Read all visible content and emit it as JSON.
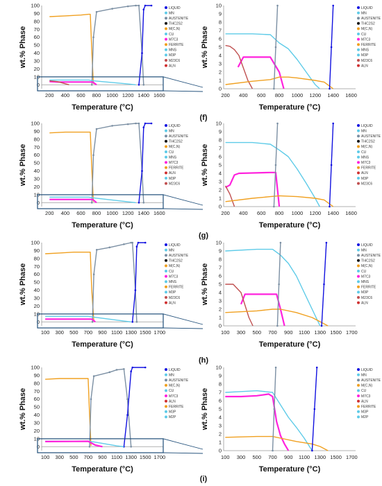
{
  "colors": {
    "LIQUID": "#1010e0",
    "MN": "#5ecbe8",
    "AUSTENITE": "#7b8fa3",
    "TI4C2S2": "#111111",
    "M(C,N)": "#f0a020",
    "CU": "#5ecbe8",
    "M7C3": "#ff22dd",
    "FERRITE": "#f0a020",
    "MNS": "#5ecbe8",
    "M3P": "#5ecbe8",
    "M23C6": "#c05050",
    "ALN": "#d03030",
    "M2P": "#5ecbe8"
  },
  "chart_data": [
    {
      "panel": "(f)",
      "side": "left",
      "type": "line",
      "xlabel": "Temperature (°C)",
      "ylabel": "wt.% Phase",
      "xlim": [
        100,
        1650
      ],
      "ylim": [
        -5,
        100
      ],
      "xticks": [
        200,
        400,
        600,
        800,
        1000,
        1200,
        1400,
        1600
      ],
      "yticks": [
        0,
        10,
        20,
        30,
        40,
        50,
        60,
        70,
        80,
        90,
        100
      ],
      "legend": [
        "LIQUID",
        "MN",
        "AUSTENITE",
        "TI4C2S2",
        "M(C,N)",
        "CU",
        "M7C3",
        "FERRITE",
        "MNS",
        "M3P",
        "M23C6",
        "ALN"
      ],
      "series": [
        {
          "name": "FERRITE",
          "x": [
            200,
            400,
            600,
            700,
            720,
            740,
            760
          ],
          "y": [
            86,
            87,
            88,
            89,
            89,
            40,
            1
          ]
        },
        {
          "name": "AUSTENITE",
          "x": [
            740,
            760,
            800,
            1000,
            1200,
            1300,
            1340,
            1380,
            1400
          ],
          "y": [
            0,
            60,
            92,
            96,
            99,
            100,
            100,
            40,
            0
          ]
        },
        {
          "name": "LIQUID",
          "x": [
            1340,
            1380,
            1400,
            1420,
            1500
          ],
          "y": [
            0,
            40,
            95,
            100,
            100
          ]
        },
        {
          "name": "MN",
          "x": [
            200,
            700,
            760,
            1200,
            1300
          ],
          "y": [
            6,
            6,
            5,
            1,
            0
          ]
        },
        {
          "name": "M7C3",
          "x": [
            200,
            300,
            750,
            800
          ],
          "y": [
            4,
            3.5,
            3.5,
            0
          ]
        },
        {
          "name": "M23C6",
          "x": [
            200,
            300,
            450
          ],
          "y": [
            5,
            4,
            0
          ]
        }
      ]
    },
    {
      "panel": "(f)",
      "side": "right",
      "type": "line",
      "xlabel": "Temperature (°C)",
      "ylabel": "wt.% Phase",
      "xlim": [
        180,
        1650
      ],
      "ylim": [
        0,
        10
      ],
      "xticks": [
        200,
        400,
        600,
        800,
        1000,
        1200,
        1400,
        1600
      ],
      "yticks": [
        0,
        1,
        2,
        3,
        4,
        5,
        6,
        7,
        8,
        9,
        10
      ],
      "legend": [
        "LIQUID",
        "MN",
        "AUSTENITE",
        "TI4C2S2",
        "M(C,N)",
        "CU",
        "M7C3",
        "FERRITE",
        "MNS",
        "M3P",
        "M23C6",
        "ALN"
      ],
      "series": [
        {
          "name": "MN",
          "x": [
            200,
            500,
            700,
            800,
            900,
            1000,
            1100,
            1200,
            1250
          ],
          "y": [
            6.6,
            6.6,
            6.5,
            5.5,
            4.8,
            3.5,
            2,
            0.5,
            0
          ]
        },
        {
          "name": "M7C3",
          "x": [
            340,
            400,
            650,
            700,
            800,
            850
          ],
          "y": [
            2.6,
            3.8,
            3.8,
            3.8,
            2,
            0
          ]
        },
        {
          "name": "M23C6",
          "x": [
            200,
            250,
            300,
            350,
            400,
            450,
            500
          ],
          "y": [
            5.2,
            5.1,
            4.7,
            4,
            2.5,
            1,
            0
          ]
        },
        {
          "name": "FERRITE",
          "x": [
            200,
            500,
            700,
            800,
            900,
            1000,
            1200,
            1300,
            1400
          ],
          "y": [
            0.5,
            0.9,
            1.1,
            1.4,
            1.4,
            1.3,
            1,
            0.8,
            0
          ]
        },
        {
          "name": "LIQUID",
          "x": [
            1360,
            1380,
            1400
          ],
          "y": [
            0,
            5,
            10
          ]
        },
        {
          "name": "AUSTENITE",
          "x": [
            740,
            760,
            780
          ],
          "y": [
            0,
            5,
            10
          ]
        }
      ]
    },
    {
      "panel": "(g)",
      "side": "left",
      "type": "line",
      "xlabel": "Temperature (°C)",
      "ylabel": "wt.% Phase",
      "xlim": [
        100,
        1650
      ],
      "ylim": [
        -5,
        100
      ],
      "xticks": [
        200,
        400,
        600,
        800,
        1000,
        1200,
        1400,
        1600
      ],
      "yticks": [
        0,
        10,
        20,
        30,
        40,
        50,
        60,
        70,
        80,
        90,
        100
      ],
      "legend": [
        "LIQUID",
        "MN",
        "AUSTENITE",
        "TI4C2S2",
        "M(C,N)",
        "CU",
        "MNS",
        "M7C3",
        "FERRITE",
        "ALN",
        "M3P",
        "M23C6"
      ],
      "series": [
        {
          "name": "FERRITE",
          "x": [
            200,
            400,
            600,
            700,
            720,
            740,
            760
          ],
          "y": [
            88,
            89,
            89,
            89,
            89,
            40,
            1
          ]
        },
        {
          "name": "AUSTENITE",
          "x": [
            740,
            760,
            800,
            1000,
            1200,
            1300,
            1340,
            1380,
            1400
          ],
          "y": [
            0,
            60,
            93,
            97,
            99,
            100,
            100,
            40,
            0
          ]
        },
        {
          "name": "LIQUID",
          "x": [
            1340,
            1380,
            1400,
            1420,
            1500
          ],
          "y": [
            0,
            40,
            95,
            100,
            100
          ]
        },
        {
          "name": "MN",
          "x": [
            200,
            700,
            760,
            1200,
            1300
          ],
          "y": [
            7,
            7,
            6,
            1,
            0
          ]
        },
        {
          "name": "M7C3",
          "x": [
            200,
            300,
            750,
            800
          ],
          "y": [
            4,
            4,
            4,
            0
          ]
        }
      ]
    },
    {
      "panel": "(g)",
      "side": "right",
      "type": "line",
      "xlabel": "Temperature (°C)",
      "ylabel": "wt.% Phase",
      "xlim": [
        180,
        1650
      ],
      "ylim": [
        0,
        10
      ],
      "xticks": [
        200,
        400,
        600,
        800,
        1000,
        1200,
        1400,
        1600
      ],
      "yticks": [
        0,
        1,
        2,
        3,
        4,
        5,
        6,
        7,
        8,
        9,
        10
      ],
      "legend": [
        "LIQUID",
        "MN",
        "AUSTENITE",
        "TI4C2S2",
        "M(C,N)",
        "CU",
        "MNS",
        "M7C3",
        "FERRITE",
        "ALN",
        "M3P",
        "M23C6"
      ],
      "series": [
        {
          "name": "MN",
          "x": [
            200,
            500,
            700,
            800,
            900,
            1000,
            1100,
            1200,
            1250
          ],
          "y": [
            7.7,
            7.7,
            7.5,
            6.8,
            6,
            4.5,
            2.8,
            1,
            0
          ]
        },
        {
          "name": "M7C3",
          "x": [
            200,
            250,
            300,
            350,
            700,
            760,
            800
          ],
          "y": [
            2.3,
            2.6,
            3.8,
            4,
            4.1,
            4.1,
            0
          ]
        },
        {
          "name": "M23C6",
          "x": [
            200,
            250,
            300
          ],
          "y": [
            2.5,
            1.5,
            0
          ]
        },
        {
          "name": "FERRITE",
          "x": [
            200,
            500,
            700,
            800,
            1000,
            1200,
            1300,
            1400
          ],
          "y": [
            0.6,
            1,
            1.2,
            1.3,
            1.2,
            1,
            0.8,
            0
          ]
        },
        {
          "name": "LIQUID",
          "x": [
            1360,
            1380,
            1400
          ],
          "y": [
            0,
            5,
            10
          ]
        },
        {
          "name": "AUSTENITE",
          "x": [
            740,
            760,
            780
          ],
          "y": [
            0,
            5,
            10
          ]
        }
      ]
    },
    {
      "panel": "(h)",
      "side": "left",
      "type": "line",
      "xlabel": "Temperature (°C)",
      "ylabel": "wt.% Phase",
      "xlim": [
        50,
        1750
      ],
      "ylim": [
        -5,
        100
      ],
      "xticks": [
        100,
        300,
        500,
        700,
        900,
        1100,
        1300,
        1500,
        1700
      ],
      "yticks": [
        0,
        10,
        20,
        30,
        40,
        50,
        60,
        70,
        80,
        90,
        100
      ],
      "legend": [
        "LIQUID",
        "MN",
        "AUSTENITE",
        "TI4C2S2",
        "M(C,N)",
        "CU",
        "M7C3",
        "MNS",
        "FERRITE",
        "M3P",
        "M23C6",
        "ALN"
      ],
      "series": [
        {
          "name": "FERRITE",
          "x": [
            100,
            300,
            500,
            700,
            730,
            750,
            780
          ],
          "y": [
            86,
            87,
            88,
            88,
            88,
            40,
            1
          ]
        },
        {
          "name": "AUSTENITE",
          "x": [
            760,
            780,
            820,
            1000,
            1200,
            1300,
            1320,
            1360,
            1380
          ],
          "y": [
            0,
            60,
            91,
            94,
            98,
            100,
            100,
            40,
            0
          ]
        },
        {
          "name": "LIQUID",
          "x": [
            1320,
            1360,
            1380,
            1400,
            1500
          ],
          "y": [
            0,
            40,
            95,
            100,
            100
          ]
        },
        {
          "name": "MN",
          "x": [
            100,
            700,
            780,
            1200,
            1300
          ],
          "y": [
            7,
            7,
            6,
            1,
            0
          ]
        },
        {
          "name": "M7C3",
          "x": [
            100,
            300,
            750,
            800
          ],
          "y": [
            3.5,
            3.5,
            3.5,
            0
          ]
        }
      ]
    },
    {
      "panel": "(h)",
      "side": "right",
      "type": "line",
      "xlabel": "Temperature (°C)",
      "ylabel": "wt.% Phase",
      "xlim": [
        80,
        1750
      ],
      "ylim": [
        0,
        10
      ],
      "xticks": [
        100,
        300,
        500,
        700,
        900,
        1100,
        1300,
        1500,
        1700
      ],
      "yticks": [
        0,
        1,
        2,
        3,
        4,
        5,
        6,
        7,
        8,
        9,
        10
      ],
      "legend": [
        "LIQUID",
        "MN",
        "AUSTENITE",
        "TI4C2S2",
        "M(C,N)",
        "CU",
        "M7C3",
        "MNS",
        "FERRITE",
        "M3P",
        "M23C6",
        "ALN"
      ],
      "series": [
        {
          "name": "MN",
          "x": [
            100,
            500,
            700,
            800,
            900,
            1000,
            1100,
            1200,
            1300
          ],
          "y": [
            9,
            9.2,
            9.2,
            8.5,
            7.5,
            6,
            4,
            2,
            0
          ]
        },
        {
          "name": "M7C3",
          "x": [
            300,
            350,
            400,
            750,
            800,
            850
          ],
          "y": [
            2.6,
            3.8,
            3.8,
            3.8,
            2,
            0
          ]
        },
        {
          "name": "M23C6",
          "x": [
            100,
            200,
            300,
            350,
            400,
            450
          ],
          "y": [
            5,
            5,
            4,
            2.5,
            1,
            0
          ]
        },
        {
          "name": "FERRITE",
          "x": [
            100,
            500,
            700,
            800,
            1000,
            1200,
            1300,
            1400
          ],
          "y": [
            1.6,
            1.8,
            2,
            2,
            1.6,
            1,
            0.5,
            0
          ]
        },
        {
          "name": "LIQUID",
          "x": [
            1320,
            1350,
            1380
          ],
          "y": [
            0,
            5,
            10
          ]
        },
        {
          "name": "AUSTENITE",
          "x": [
            760,
            780,
            800
          ],
          "y": [
            0,
            5,
            10
          ]
        }
      ]
    },
    {
      "panel": "(i)",
      "side": "left",
      "type": "line",
      "xlabel": "Temperature (°C)",
      "ylabel": "wt.% Phase",
      "xlim": [
        50,
        1750
      ],
      "ylim": [
        -5,
        100
      ],
      "xticks": [
        100,
        300,
        500,
        700,
        900,
        1100,
        1300,
        1500,
        1700
      ],
      "yticks": [
        0,
        10,
        20,
        30,
        40,
        50,
        60,
        70,
        80,
        90,
        100
      ],
      "legend": [
        "LIQUID",
        "MN",
        "AUSTENITE",
        "M(C,N)",
        "CU",
        "M7C3",
        "ALN",
        "FERRITE",
        "M3P",
        "M2P"
      ],
      "series": [
        {
          "name": "FERRITE",
          "x": [
            100,
            300,
            500,
            680,
            700,
            720,
            740
          ],
          "y": [
            85,
            86,
            86,
            86,
            86,
            40,
            1
          ]
        },
        {
          "name": "AUSTENITE",
          "x": [
            720,
            740,
            780,
            1000,
            1100,
            1200,
            1250,
            1300
          ],
          "y": [
            0,
            60,
            89,
            94,
            97,
            98,
            60,
            0
          ]
        },
        {
          "name": "LIQUID",
          "x": [
            1200,
            1250,
            1300,
            1320,
            1500
          ],
          "y": [
            0,
            40,
            95,
            100,
            100
          ]
        },
        {
          "name": "MN",
          "x": [
            100,
            700,
            780,
            1100,
            1200
          ],
          "y": [
            7,
            7,
            6,
            1,
            0
          ]
        },
        {
          "name": "M7C3",
          "x": [
            100,
            500,
            700,
            800,
            900
          ],
          "y": [
            6.5,
            6.6,
            6.8,
            2,
            0
          ]
        }
      ]
    },
    {
      "panel": "(i)",
      "side": "right",
      "type": "line",
      "xlabel": "Temperature (°C)",
      "ylabel": "wt.% Phase",
      "xlim": [
        80,
        1750
      ],
      "ylim": [
        0,
        10
      ],
      "xticks": [
        100,
        300,
        500,
        700,
        900,
        1100,
        1300,
        1500,
        1700
      ],
      "yticks": [
        0,
        1,
        2,
        3,
        4,
        5,
        6,
        7,
        8,
        9,
        10
      ],
      "legend": [
        "LIQUID",
        "MN",
        "AUSTENITE",
        "M(C,N)",
        "CU",
        "M7C3",
        "ALN",
        "FERRITE",
        "M3P",
        "M2P"
      ],
      "series": [
        {
          "name": "MN",
          "x": [
            100,
            300,
            500,
            700,
            800,
            900,
            1000,
            1100,
            1200
          ],
          "y": [
            7,
            7.1,
            7.2,
            7,
            5.5,
            4,
            2.8,
            1.5,
            0
          ]
        },
        {
          "name": "M7C3",
          "x": [
            100,
            300,
            500,
            650,
            700,
            750,
            800,
            850,
            900
          ],
          "y": [
            6.5,
            6.5,
            6.6,
            6.8,
            6.5,
            3.5,
            1.8,
            0.8,
            0
          ]
        },
        {
          "name": "FERRITE",
          "x": [
            100,
            500,
            700,
            800,
            1000,
            1200,
            1300,
            1400
          ],
          "y": [
            1.6,
            1.7,
            1.7,
            1.5,
            1.1,
            0.8,
            0.5,
            0
          ]
        },
        {
          "name": "LIQUID",
          "x": [
            1200,
            1230,
            1260
          ],
          "y": [
            0,
            5,
            10
          ]
        },
        {
          "name": "AUSTENITE",
          "x": [
            700,
            720,
            740
          ],
          "y": [
            0,
            5,
            10
          ]
        }
      ]
    }
  ],
  "panel_labels": [
    "(f)",
    "(g)",
    "(h)",
    "(i)"
  ]
}
